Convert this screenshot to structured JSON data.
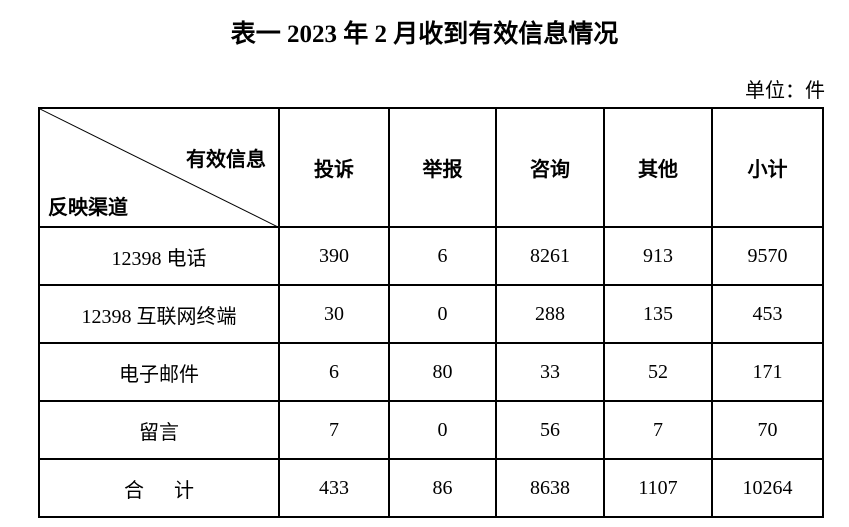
{
  "title": "表一  2023 年 2 月收到有效信息情况",
  "unit": "单位：件",
  "table": {
    "corner_top": "有效信息",
    "corner_bottom": "反映渠道",
    "columns": [
      "投诉",
      "举报",
      "咨询",
      "其他",
      "小计"
    ],
    "rows": [
      {
        "label": "12398 电话",
        "values": [
          "390",
          "6",
          "8261",
          "913",
          "9570"
        ]
      },
      {
        "label": "12398 互联网终端",
        "values": [
          "30",
          "0",
          "288",
          "135",
          "453"
        ]
      },
      {
        "label": "电子邮件",
        "values": [
          "6",
          "80",
          "33",
          "52",
          "171"
        ]
      },
      {
        "label": "留言",
        "values": [
          "7",
          "0",
          "56",
          "7",
          "70"
        ]
      },
      {
        "label": "合      计",
        "values": [
          "433",
          "86",
          "8638",
          "1107",
          "10264"
        ]
      }
    ]
  }
}
